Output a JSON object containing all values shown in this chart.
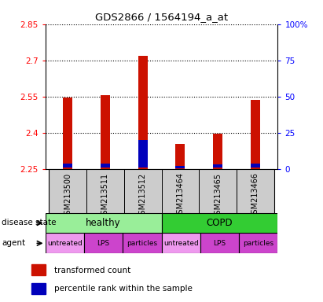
{
  "title": "GDS2866 / 1564194_a_at",
  "samples": [
    "GSM213500",
    "GSM213511",
    "GSM213512",
    "GSM213464",
    "GSM213465",
    "GSM213466"
  ],
  "bar_bottom": 2.25,
  "red_tops": [
    2.545,
    2.555,
    2.72,
    2.355,
    2.398,
    2.538
  ],
  "blue_bottoms": [
    2.258,
    2.258,
    2.258,
    2.253,
    2.256,
    2.258
  ],
  "blue_tops": [
    2.274,
    2.273,
    2.372,
    2.263,
    2.271,
    2.272
  ],
  "ylim_left": [
    2.25,
    2.85
  ],
  "yticks_left": [
    2.25,
    2.4,
    2.55,
    2.7,
    2.85
  ],
  "yticks_right": [
    0,
    25,
    50,
    75,
    100
  ],
  "yright_labels": [
    "0",
    "25",
    "50",
    "75",
    "100%"
  ],
  "agent_labels": [
    "untreated",
    "LPS",
    "particles",
    "untreated",
    "LPS",
    "particles"
  ],
  "agent_colors": [
    "#ee99ee",
    "#cc44cc",
    "#cc44cc",
    "#ee99ee",
    "#cc44cc",
    "#cc44cc"
  ],
  "healthy_color": "#99ee99",
  "copd_color": "#33cc33",
  "sample_bg_color": "#cccccc",
  "bar_width": 0.25,
  "red_color": "#cc1100",
  "blue_color": "#0000bb",
  "dotted_yticks": [
    2.4,
    2.55,
    2.7,
    2.85
  ]
}
